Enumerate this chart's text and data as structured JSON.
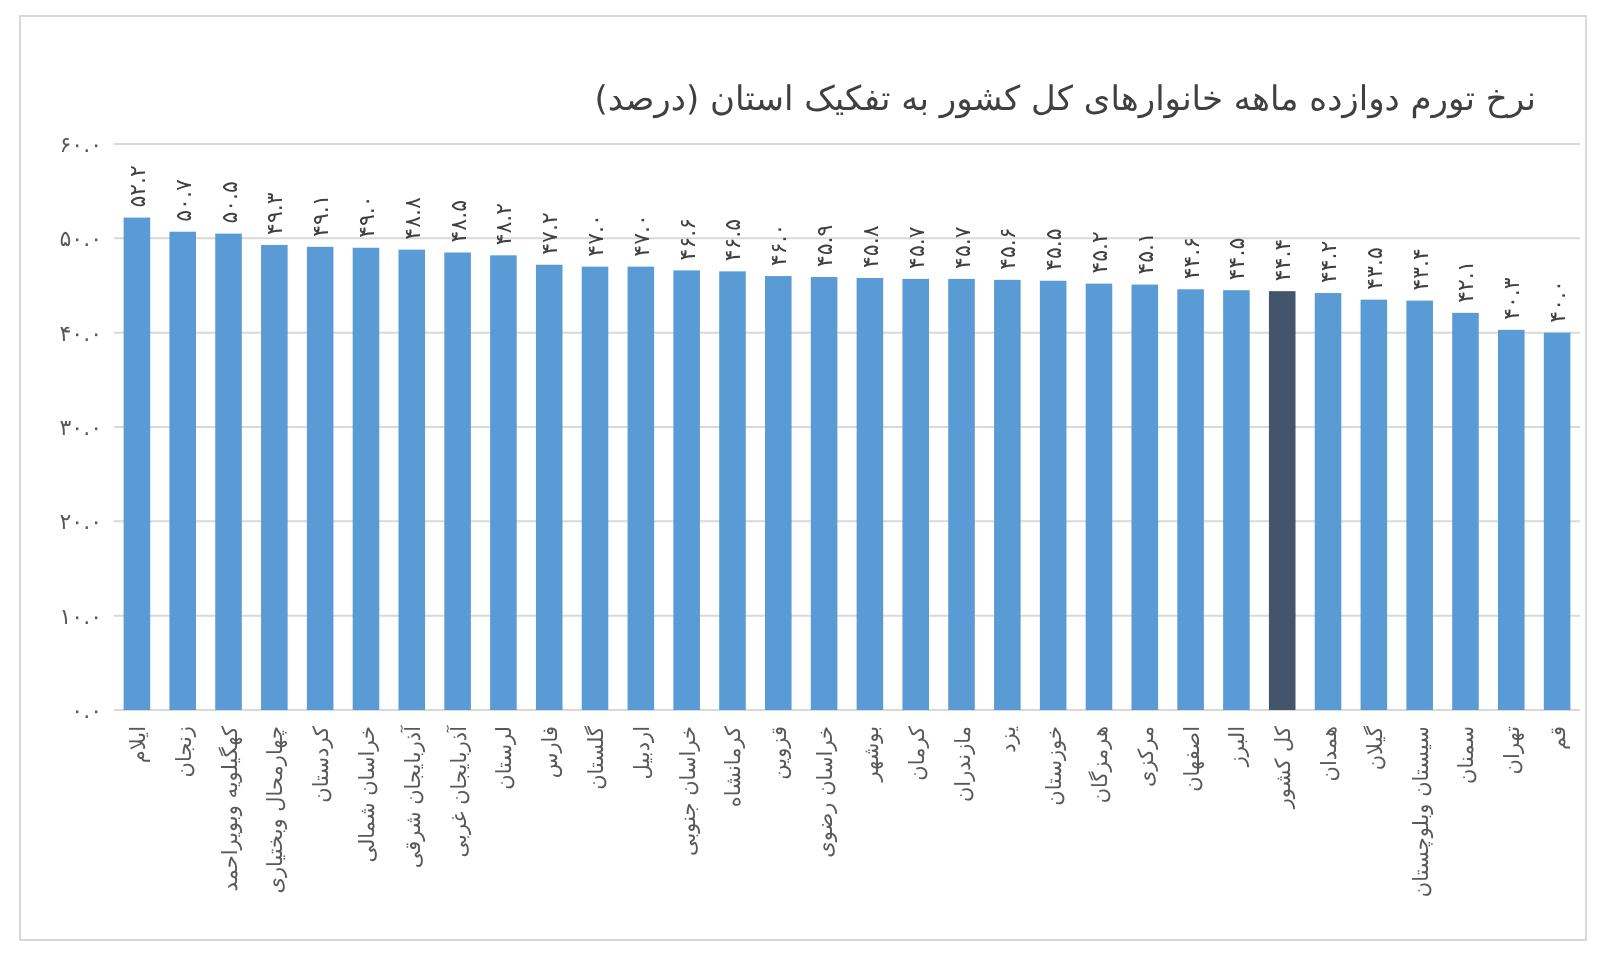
{
  "chart_data": {
    "type": "bar",
    "title": "نرخ تورم دوازده ماهه خانوارهای کل کشور به تفکیک استان (درصد)",
    "categories": [
      "ایلام",
      "زنجان",
      "کهگیلویه وبویراحمد",
      "چهارمحال وبختیاری",
      "کردستان",
      "خراسان شمالی",
      "آذربایجان شرقی",
      "آذربایجان غربی",
      "لرستان",
      "فارس",
      "گلستان",
      "اردبیل",
      "خراسان جنوبی",
      "کرمانشاه",
      "قزوین",
      "خراسان رضوی",
      "بوشهر",
      "کرمان",
      "مازندران",
      "یزد",
      "خوزستان",
      "هرمزگان",
      "مرکزی",
      "اصفهان",
      "البرز",
      "کل کشور",
      "همدان",
      "گیلان",
      "سیستان وبلوچستان",
      "سمنان",
      "تهران",
      "قم"
    ],
    "values": [
      52.2,
      50.7,
      50.5,
      49.3,
      49.1,
      49.0,
      48.8,
      48.5,
      48.2,
      47.2,
      47.0,
      47.0,
      46.6,
      46.5,
      46.0,
      45.9,
      45.8,
      45.7,
      45.7,
      45.6,
      45.5,
      45.2,
      45.1,
      44.6,
      44.5,
      44.4,
      44.2,
      43.5,
      43.4,
      42.1,
      40.3,
      40.0
    ],
    "value_labels": [
      "۵۲.۲",
      "۵۰.۷",
      "۵۰.۵",
      "۴۹.۳",
      "۴۹.۱",
      "۴۹.۰",
      "۴۸.۸",
      "۴۸.۵",
      "۴۸.۲",
      "۴۷.۲",
      "۴۷.۰",
      "۴۷.۰",
      "۴۶.۶",
      "۴۶.۵",
      "۴۶.۰",
      "۴۵.۹",
      "۴۵.۸",
      "۴۵.۷",
      "۴۵.۷",
      "۴۵.۶",
      "۴۵.۵",
      "۴۵.۲",
      "۴۵.۱",
      "۴۴.۶",
      "۴۴.۵",
      "۴۴.۴",
      "۴۴.۲",
      "۴۳.۵",
      "۴۳.۴",
      "۴۲.۱",
      "۴۰.۳",
      "۴۰.۰"
    ],
    "colors": [
      "#5b9bd5",
      "#5b9bd5",
      "#5b9bd5",
      "#5b9bd5",
      "#5b9bd5",
      "#5b9bd5",
      "#5b9bd5",
      "#5b9bd5",
      "#5b9bd5",
      "#5b9bd5",
      "#5b9bd5",
      "#5b9bd5",
      "#5b9bd5",
      "#5b9bd5",
      "#5b9bd5",
      "#5b9bd5",
      "#5b9bd5",
      "#5b9bd5",
      "#5b9bd5",
      "#5b9bd5",
      "#5b9bd5",
      "#5b9bd5",
      "#5b9bd5",
      "#5b9bd5",
      "#5b9bd5",
      "#44546a",
      "#5b9bd5",
      "#5b9bd5",
      "#5b9bd5",
      "#5b9bd5",
      "#5b9bd5",
      "#5b9bd5"
    ],
    "ylim": [
      0,
      60
    ],
    "yticks": [
      {
        "value": 0,
        "label": "۰.۰"
      },
      {
        "value": 10,
        "label": "۱۰.۰"
      },
      {
        "value": 20,
        "label": "۲۰.۰"
      },
      {
        "value": 30,
        "label": "۳۰.۰"
      },
      {
        "value": 40,
        "label": "۴۰.۰"
      },
      {
        "value": 50,
        "label": "۵۰.۰"
      },
      {
        "value": 60,
        "label": "۶۰.۰"
      }
    ],
    "grid": "y"
  }
}
